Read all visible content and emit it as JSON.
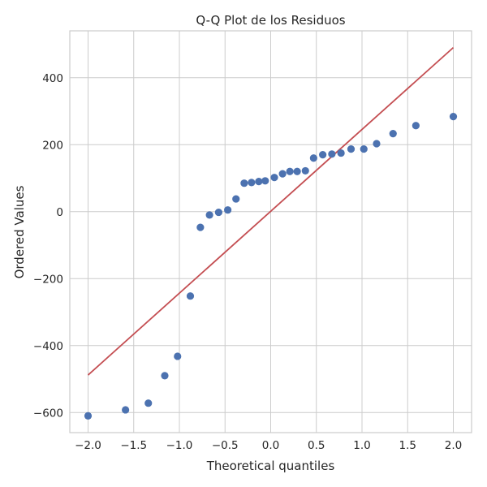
{
  "chart_data": {
    "type": "scatter",
    "title": "Q-Q Plot de los Residuos",
    "xlabel": "Theoretical quantiles",
    "ylabel": "Ordered Values",
    "xlim": [
      -2.2,
      2.2
    ],
    "ylim": [
      -660,
      540
    ],
    "grid": true,
    "x_ticks": [
      -2.0,
      -1.5,
      -1.0,
      -0.5,
      0.0,
      0.5,
      1.0,
      1.5,
      2.0
    ],
    "x_tick_labels": [
      "−2.0",
      "−1.5",
      "−1.0",
      "−0.5",
      "0.0",
      "0.5",
      "1.0",
      "1.5",
      "2.0"
    ],
    "y_ticks": [
      -600,
      -400,
      -200,
      0,
      200,
      400
    ],
    "y_tick_labels": [
      "−600",
      "−400",
      "−200",
      "0",
      "200",
      "400"
    ],
    "points": {
      "color": "#4c72b0",
      "x": [
        -2.0,
        -1.59,
        -1.34,
        -1.16,
        -1.02,
        -0.88,
        -0.77,
        -0.67,
        -0.57,
        -0.47,
        -0.38,
        -0.29,
        -0.21,
        -0.13,
        -0.06,
        0.04,
        0.13,
        0.21,
        0.29,
        0.38,
        0.47,
        0.57,
        0.67,
        0.77,
        0.88,
        1.02,
        1.16,
        1.34,
        1.59,
        2.0
      ],
      "y": [
        -610,
        -592,
        -572,
        -490,
        -432,
        -252,
        -47,
        -10,
        -2,
        5,
        38,
        85,
        87,
        90,
        92,
        102,
        113,
        120,
        120,
        122,
        160,
        170,
        172,
        175,
        187,
        187,
        203,
        233,
        257,
        284
      ]
    },
    "fit_line": {
      "color": "#c44e52",
      "x": [
        -2.0,
        2.0
      ],
      "y": [
        -488,
        490
      ]
    }
  }
}
